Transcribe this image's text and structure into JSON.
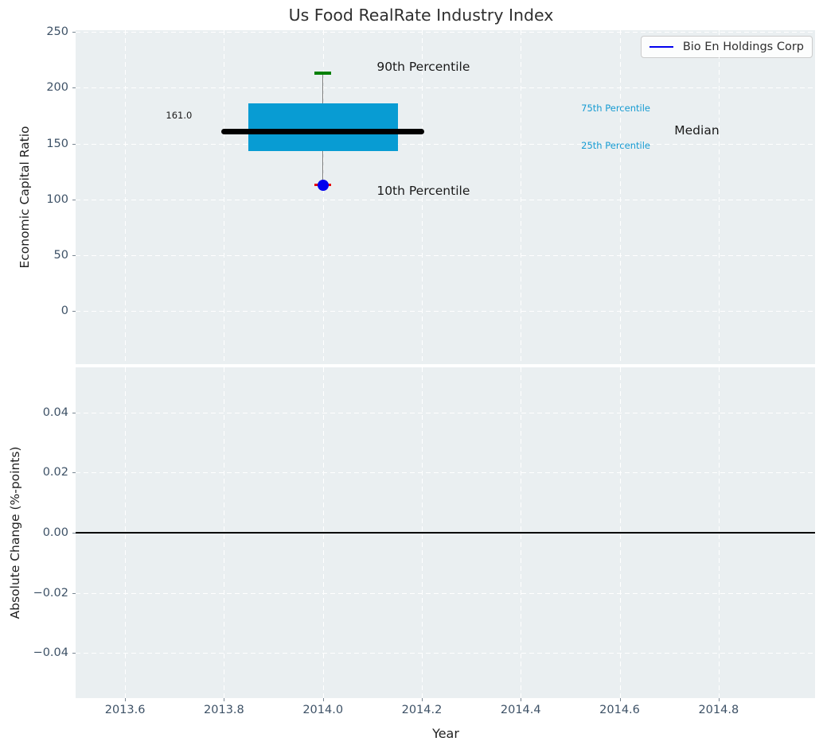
{
  "figure": {
    "title": "Us Food RealRate Industry Index",
    "background": "#ffffff",
    "axes_background": "#EAEFF1",
    "grid_color": "#ffffff",
    "tick_label_color": "#3D5166"
  },
  "legend": {
    "label": "Bio En Holdings Corp",
    "line_color": "#0000EE",
    "position": "upper right"
  },
  "chart_data": [
    {
      "type": "boxplot",
      "panel": "top",
      "title": "Us Food RealRate Industry Index",
      "xlabel": "",
      "ylabel": "Economic Capital Ratio",
      "xlim": [
        2013.5,
        2014.995
      ],
      "ylim": [
        -47.5,
        251.5
      ],
      "yticks": [
        0,
        50,
        100,
        150,
        200,
        250
      ],
      "ytick_labels": [
        "0",
        "50",
        "100",
        "150",
        "200",
        "250"
      ],
      "xticks": [
        2013.6,
        2013.8,
        2014.0,
        2014.2,
        2014.4,
        2014.6,
        2014.8
      ],
      "xtick_labels": [],
      "grid": true,
      "box": {
        "x_center": 2014.0,
        "box_half_width": 0.151,
        "median_half_width": 0.205,
        "cap_half_width": 0.0165,
        "p10": 113,
        "p25": 143,
        "median": 161,
        "p75": 186,
        "p90": 213,
        "median_value_label": "161.0",
        "box_color": "#089CD3",
        "median_color": "#000000",
        "whisker_color": "#7d7d7d",
        "p90_cap_color": "#008000",
        "p10_cap_color": "#E60000"
      },
      "company_point": {
        "name": "Bio En Holdings Corp",
        "x": 2014.0,
        "y": 113,
        "color": "#0000EE"
      },
      "annotations": [
        {
          "text": "90th Percentile",
          "x": 2014.203,
          "y": 219,
          "color": "#1a1a1a",
          "size": 15.5
        },
        {
          "text": "10th Percentile",
          "x": 2014.203,
          "y": 108,
          "color": "#1a1a1a",
          "size": 15.5
        },
        {
          "text": "161.0",
          "x": 2013.709,
          "y": 175,
          "color": "#1a1a1a",
          "size": 11.5
        },
        {
          "text": "75th Percentile",
          "x": 2014.592,
          "y": 182,
          "color": "#169BD2",
          "size": 11.5
        },
        {
          "text": "25th Percentile",
          "x": 2014.592,
          "y": 148,
          "color": "#169BD2",
          "size": 11.5
        },
        {
          "text": "Median",
          "x": 2014.756,
          "y": 162,
          "color": "#1a1a1a",
          "size": 15.5
        }
      ]
    },
    {
      "type": "line",
      "panel": "bottom",
      "xlabel": "Year",
      "ylabel": "Absolute Change (%-points)",
      "xlim": [
        2013.5,
        2014.995
      ],
      "ylim": [
        -0.055,
        0.055
      ],
      "yticks": [
        -0.04,
        -0.02,
        0,
        0.02,
        0.04
      ],
      "ytick_labels": [
        "−0.04",
        "−0.02",
        "0.00",
        "0.02",
        "0.04"
      ],
      "xticks": [
        2013.6,
        2013.8,
        2014.0,
        2014.2,
        2014.4,
        2014.6,
        2014.8
      ],
      "xtick_labels": [
        "2013.6",
        "2013.8",
        "2014.0",
        "2014.2",
        "2014.4",
        "2014.6",
        "2014.8"
      ],
      "grid": true,
      "zero_line": 0,
      "series": []
    }
  ]
}
